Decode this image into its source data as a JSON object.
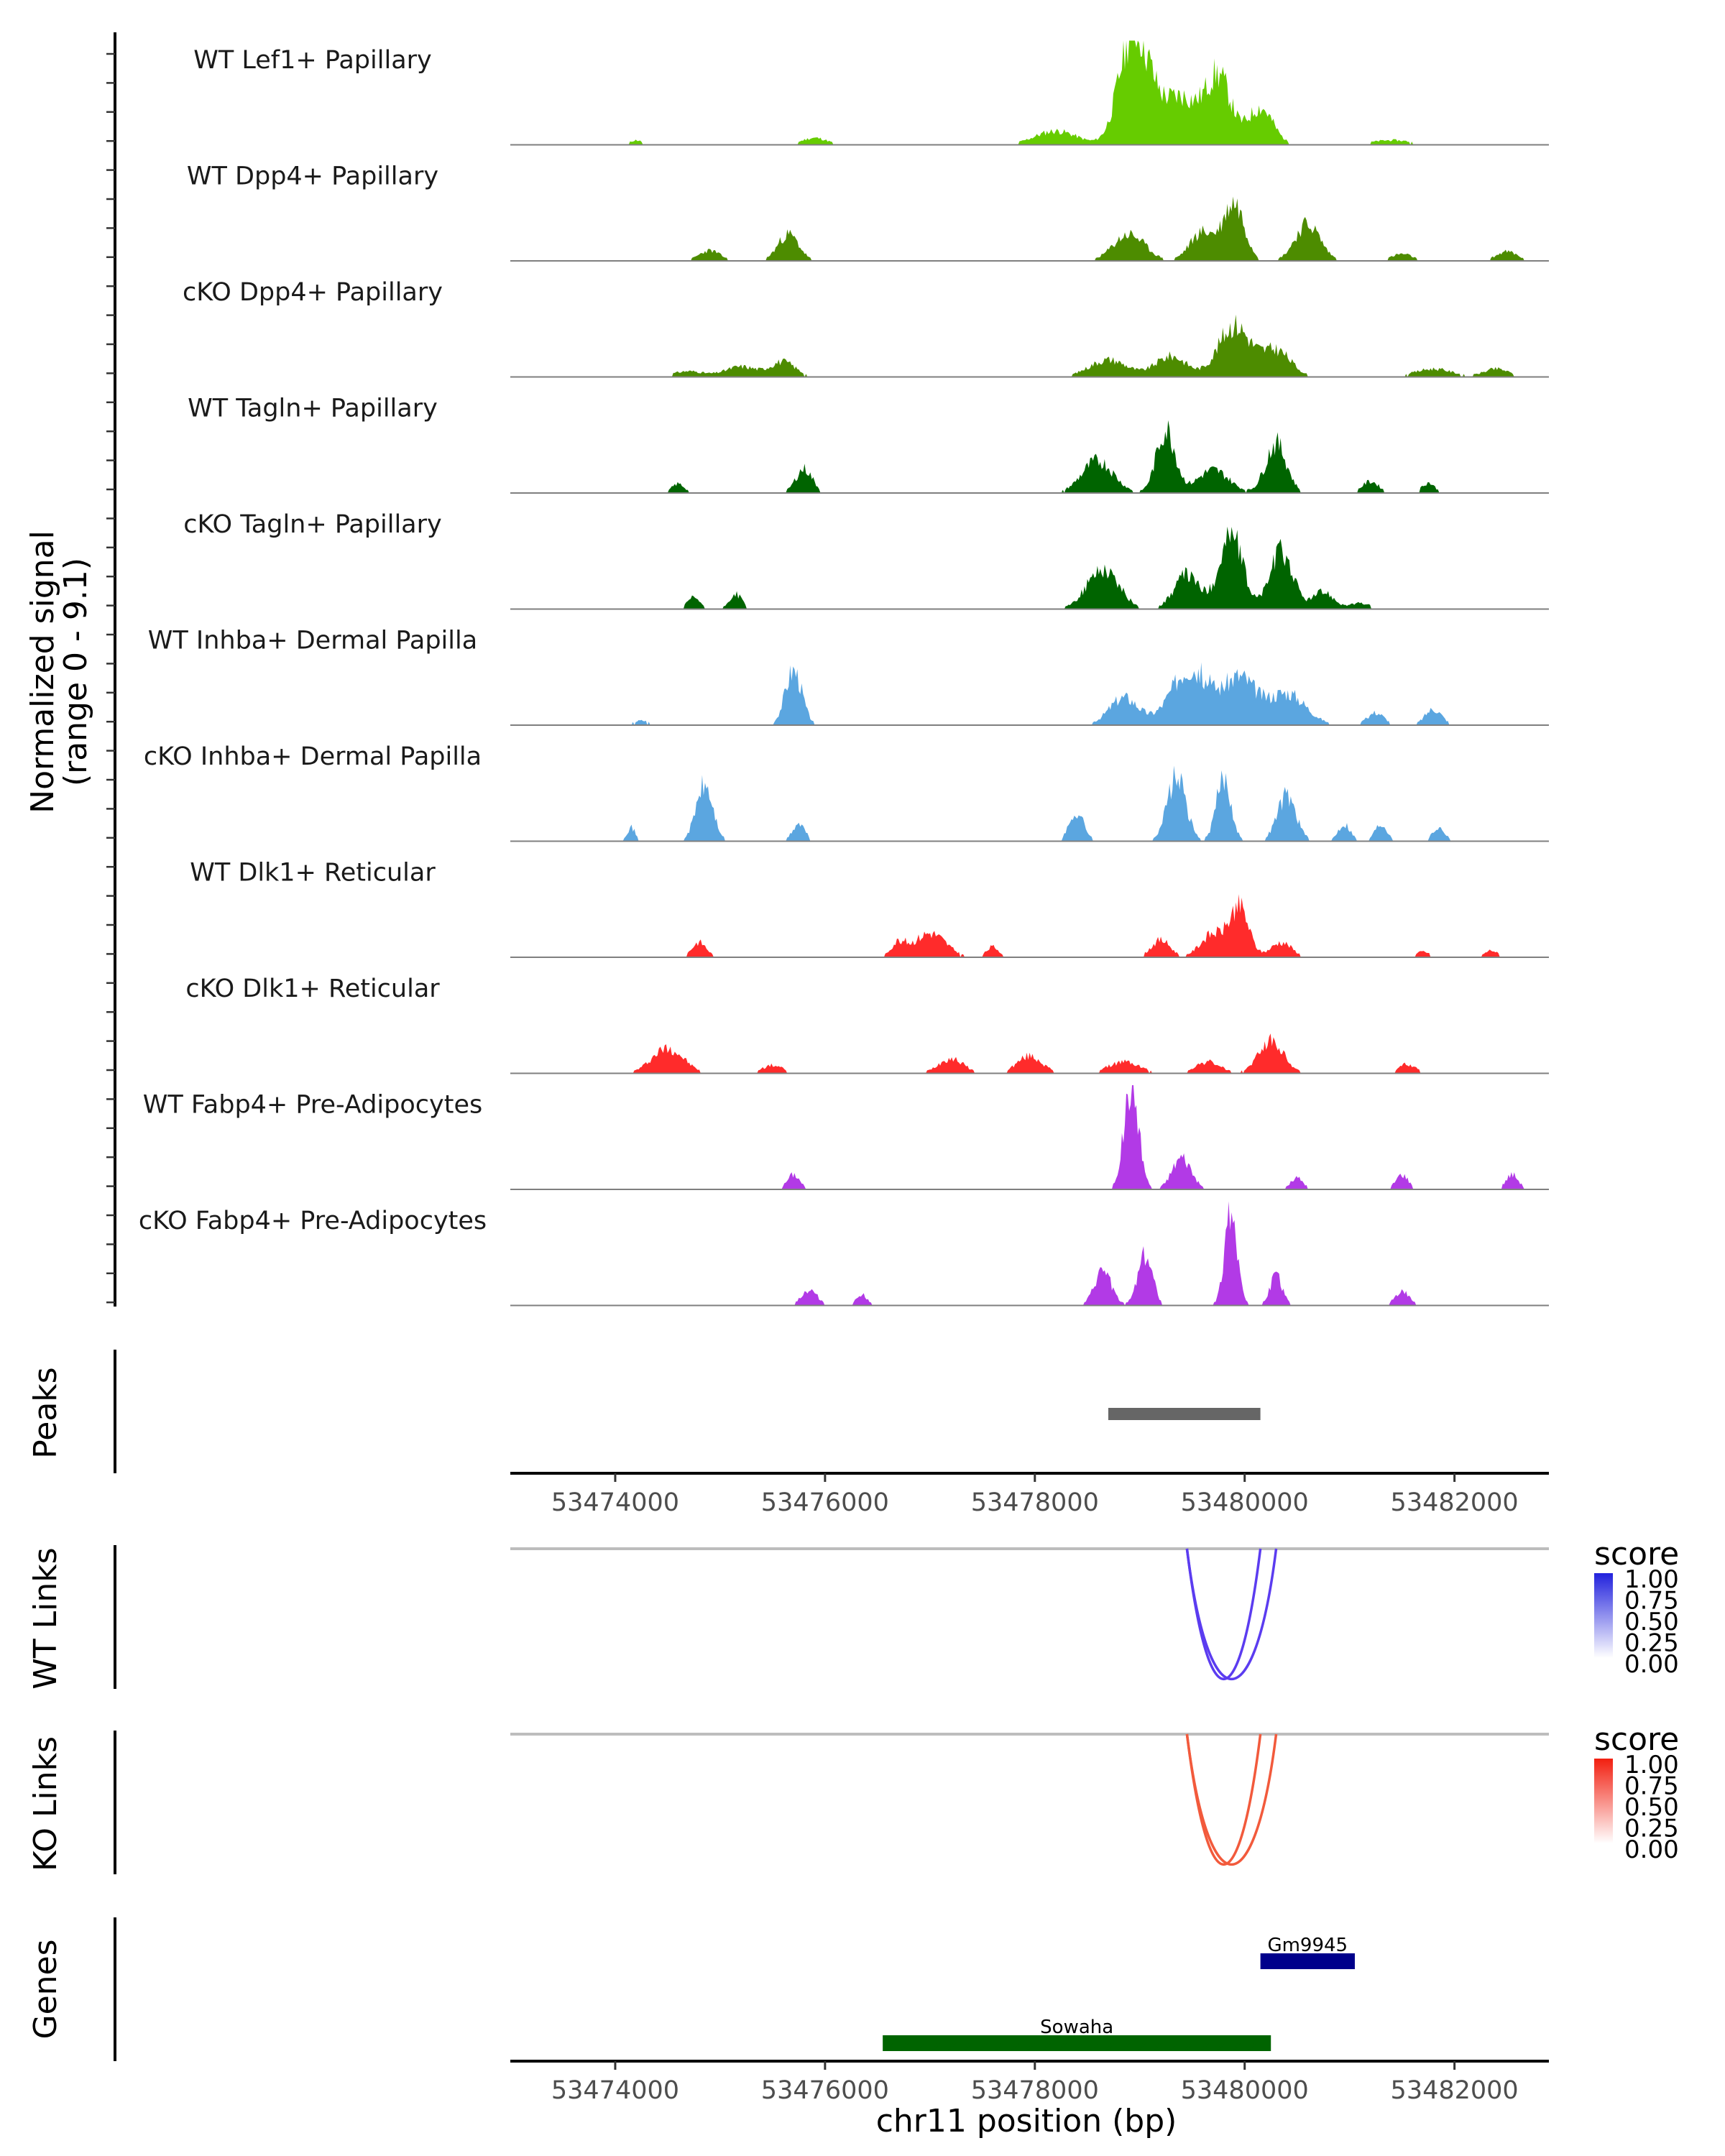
{
  "chart_data": {
    "type": "area",
    "region": "chr11",
    "xlim": [
      53473000,
      53482900
    ],
    "signal_axis": {
      "label_line1": "Normalized signal",
      "label_line2": "(range 0 - 9.1)",
      "ylim": [
        0,
        9.1
      ]
    },
    "tracks": [
      {
        "name": "WT Lef1+ Papillary",
        "color": "#66cc00",
        "profile": "lef1",
        "seed": 11,
        "peaks": [
          [
            53479000,
            150,
            6.5
          ],
          [
            53479750,
            120,
            5.8
          ],
          [
            53480150,
            120,
            3.2
          ],
          [
            53478900,
            120,
            4.5
          ],
          [
            53479400,
            160,
            4.0
          ],
          [
            53478200,
            200,
            1.2
          ],
          [
            53475900,
            120,
            0.6
          ],
          [
            53474200,
            60,
            0.4
          ],
          [
            53481400,
            200,
            0.4
          ]
        ]
      },
      {
        "name": "WT Dpp4+ Papillary",
        "color": "#4d8c00",
        "profile": "dpp4wt",
        "seed": 23,
        "peaks": [
          [
            53479900,
            100,
            5.0
          ],
          [
            53480600,
            120,
            3.2
          ],
          [
            53479600,
            120,
            2.5
          ],
          [
            53478900,
            150,
            2.3
          ],
          [
            53475650,
            100,
            2.3
          ],
          [
            53474900,
            100,
            0.9
          ],
          [
            53482500,
            100,
            0.8
          ],
          [
            53481500,
            100,
            0.6
          ]
        ]
      },
      {
        "name": "cKO Dpp4+ Papillary",
        "color": "#4d8c00",
        "profile": "dpp4ko",
        "seed": 31,
        "peaks": [
          [
            53479900,
            150,
            4.5
          ],
          [
            53480300,
            140,
            2.3
          ],
          [
            53479300,
            150,
            1.8
          ],
          [
            53478700,
            180,
            1.5
          ],
          [
            53475600,
            120,
            1.3
          ],
          [
            53475200,
            150,
            0.9
          ],
          [
            53474700,
            150,
            0.5
          ],
          [
            53481800,
            180,
            0.7
          ],
          [
            53482400,
            120,
            0.7
          ]
        ]
      },
      {
        "name": "WT Tagln+ Papillary",
        "color": "#006400",
        "profile": "taglnwt",
        "seed": 43,
        "peaks": [
          [
            53479250,
            90,
            5.5
          ],
          [
            53480300,
            100,
            4.3
          ],
          [
            53478600,
            150,
            2.8
          ],
          [
            53479700,
            150,
            2.0
          ],
          [
            53475800,
            80,
            2.1
          ],
          [
            53474600,
            60,
            0.8
          ],
          [
            53481200,
            80,
            1.0
          ],
          [
            53481750,
            60,
            0.9
          ]
        ]
      },
      {
        "name": "cKO Tagln+ Papillary",
        "color": "#006400",
        "profile": "taglnko",
        "seed": 57,
        "peaks": [
          [
            53479870,
            110,
            6.5
          ],
          [
            53480350,
            110,
            5.0
          ],
          [
            53478650,
            150,
            3.5
          ],
          [
            53479450,
            120,
            3.0
          ],
          [
            53475150,
            60,
            1.3
          ],
          [
            53474750,
            60,
            1.0
          ],
          [
            53480750,
            100,
            1.5
          ],
          [
            53481100,
            100,
            0.5
          ]
        ]
      },
      {
        "name": "WT Inhba+ Dermal Papilla",
        "color": "#5ba6e0",
        "profile": "inhbawt",
        "seed": 67,
        "peaks": [
          [
            53475700,
            80,
            4.8
          ],
          [
            53479480,
            180,
            5.0
          ],
          [
            53479950,
            150,
            4.0
          ],
          [
            53480400,
            180,
            2.8
          ],
          [
            53478850,
            140,
            2.4
          ],
          [
            53481800,
            80,
            1.4
          ],
          [
            53481250,
            80,
            1.1
          ],
          [
            53474250,
            80,
            0.4
          ]
        ]
      },
      {
        "name": "cKO Inhba+ Dermal Papilla",
        "color": "#5ba6e0",
        "profile": "inhbako",
        "seed": 71,
        "peaks": [
          [
            53479350,
            90,
            5.5
          ],
          [
            53479800,
            70,
            5.5
          ],
          [
            53480400,
            90,
            4.0
          ],
          [
            53474850,
            80,
            4.8
          ],
          [
            53478400,
            70,
            2.5
          ],
          [
            53475750,
            60,
            1.5
          ],
          [
            53480950,
            60,
            1.5
          ],
          [
            53481300,
            60,
            1.5
          ],
          [
            53481850,
            60,
            1.2
          ],
          [
            53474150,
            40,
            1.2
          ]
        ]
      },
      {
        "name": "WT Dlk1+ Reticular",
        "color": "#ff2b2b",
        "profile": "dlk1wt",
        "seed": 83,
        "peaks": [
          [
            53479950,
            90,
            4.2
          ],
          [
            53479700,
            120,
            2.0
          ],
          [
            53477000,
            150,
            2.1
          ],
          [
            53479200,
            90,
            1.5
          ],
          [
            53480350,
            100,
            1.3
          ],
          [
            53474800,
            70,
            1.3
          ],
          [
            53476700,
            70,
            1.2
          ],
          [
            53477600,
            60,
            0.9
          ],
          [
            53482350,
            60,
            0.6
          ],
          [
            53481700,
            60,
            0.5
          ]
        ]
      },
      {
        "name": "cKO Dlk1+ Reticular",
        "color": "#ff2b2b",
        "profile": "dlk1ko",
        "seed": 97,
        "peaks": [
          [
            53480250,
            120,
            2.8
          ],
          [
            53474500,
            150,
            2.2
          ],
          [
            53477950,
            120,
            1.5
          ],
          [
            53477200,
            120,
            1.3
          ],
          [
            53478850,
            150,
            1.0
          ],
          [
            53479650,
            120,
            1.0
          ],
          [
            53475500,
            100,
            0.7
          ],
          [
            53481550,
            80,
            0.8
          ]
        ]
      },
      {
        "name": "WT Fabp4+ Pre-Adipocytes",
        "color": "#b23ae6",
        "profile": "fabp4wt",
        "seed": 101,
        "peaks": [
          [
            53478920,
            70,
            9.1
          ],
          [
            53479400,
            90,
            2.8
          ],
          [
            53481500,
            60,
            1.3
          ],
          [
            53482550,
            60,
            1.3
          ],
          [
            53475700,
            60,
            1.3
          ],
          [
            53480500,
            60,
            1.0
          ]
        ]
      },
      {
        "name": "cKO Fabp4+ Pre-Adipocytes",
        "color": "#b23ae6",
        "profile": "fabp4ko",
        "seed": 113,
        "peaks": [
          [
            53479870,
            60,
            8.5
          ],
          [
            53479050,
            70,
            4.5
          ],
          [
            53478650,
            80,
            3.0
          ],
          [
            53480300,
            60,
            2.5
          ],
          [
            53475850,
            80,
            1.3
          ],
          [
            53481500,
            70,
            1.2
          ],
          [
            53476350,
            50,
            1.0
          ]
        ]
      }
    ],
    "peaks_track": {
      "label": "Peaks",
      "regions": [
        [
          53478700,
          53480150
        ]
      ],
      "color": "#666666",
      "tick_labels": [
        "53474000",
        "53476000",
        "53478000",
        "53480000",
        "53482000"
      ],
      "ticks": [
        53474000,
        53476000,
        53478000,
        53480000,
        53482000
      ]
    },
    "links": [
      {
        "label": "WT Links",
        "color": "#5b3cf0",
        "arcs": [
          [
            53479450,
            53480150,
            1.0
          ],
          [
            53479450,
            53480300,
            1.0
          ]
        ],
        "legend": {
          "title": "score",
          "ticks": [
            "1.00",
            "0.75",
            "0.50",
            "0.25",
            "0.00"
          ],
          "from": "#ffffff",
          "to": "#2222dd"
        }
      },
      {
        "label": "KO Links",
        "color": "#f25a3c",
        "arcs": [
          [
            53479450,
            53480150,
            1.0
          ],
          [
            53479450,
            53480300,
            1.0
          ]
        ],
        "legend": {
          "title": "score",
          "ticks": [
            "1.00",
            "0.75",
            "0.50",
            "0.25",
            "0.00"
          ],
          "from": "#ffffff",
          "to": "#f21f10"
        }
      }
    ],
    "genes": {
      "label": "Genes",
      "items": [
        {
          "name": "Gm9945",
          "start": 53480150,
          "end": 53481050,
          "strand": "-",
          "color": "#00008b",
          "row": 0
        },
        {
          "name": "Sowaha",
          "start": 53476550,
          "end": 53480250,
          "strand": "+",
          "color": "#006400",
          "row": 1
        }
      ]
    },
    "xlabel": "chr11 position (bp)",
    "tick_labels": [
      "53474000",
      "53476000",
      "53478000",
      "53480000",
      "53482000"
    ],
    "ticks": [
      53474000,
      53476000,
      53478000,
      53480000,
      53482000
    ]
  }
}
